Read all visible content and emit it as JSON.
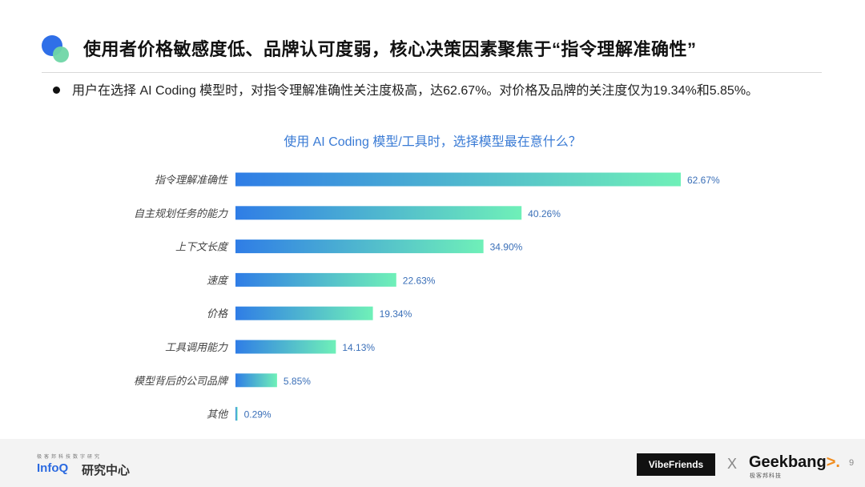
{
  "header": {
    "title": "使用者价格敏感度低、品牌认可度弱，核心决策因素聚焦于“指令理解准确性”"
  },
  "bullet": {
    "text": "用户在选择 AI Coding 模型时，对指令理解准确性关注度极高，达62.67%。对价格及品牌的关注度仅为19.34%和5.85%。"
  },
  "chart_data": {
    "type": "bar",
    "orientation": "horizontal",
    "title": "使用 AI Coding 模型/工具时，选择模型最在意什么？",
    "categories": [
      "指令理解准确性",
      "自主规划任务的能力",
      "上下文长度",
      "速度",
      "价格",
      "工具调用能力",
      "模型背后的公司品牌",
      "其他"
    ],
    "values": [
      62.67,
      40.26,
      34.9,
      22.63,
      19.34,
      14.13,
      5.85,
      0.29
    ],
    "value_labels": [
      "62.67%",
      "40.26%",
      "34.90%",
      "22.63%",
      "19.34%",
      "14.13%",
      "5.85%",
      "0.29%"
    ],
    "xlim": [
      0,
      62.67
    ],
    "grid": false,
    "legend": "none",
    "colors": {
      "gradient_start": "#2f7de6",
      "gradient_end": "#6ff0b8",
      "label": "#3a6fb8"
    }
  },
  "footer": {
    "infoq_small": "极客邦科技数字研究",
    "infoq_brand": "InfoQ",
    "infoq_sub": "研究中心",
    "vibe": "VibeFriends",
    "x": "X",
    "geek_main": "Geek",
    "geek_accent": "bang",
    "geek_tail": ">.",
    "geek_sub": "极客邦科技",
    "page": "9"
  }
}
